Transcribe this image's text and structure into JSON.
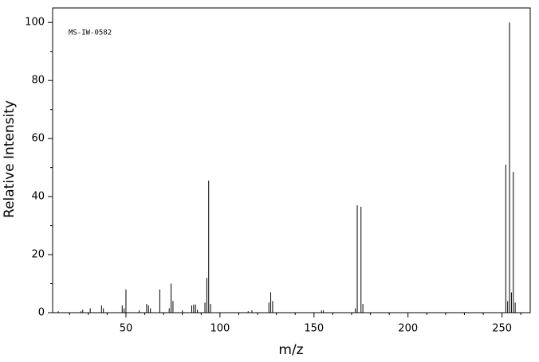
{
  "chart_data": {
    "type": "bar",
    "annotation": "MS-IW-0582",
    "x_label": "m/z",
    "y_label": "Relative Intensity",
    "x": [
      14,
      26,
      27,
      31,
      37,
      38,
      48,
      49,
      50,
      57,
      61,
      62,
      63,
      68,
      73,
      74,
      75,
      80,
      85,
      86,
      87,
      88,
      92,
      93,
      94,
      95,
      115,
      117,
      126,
      127,
      128,
      154,
      155,
      172,
      173,
      175,
      176,
      252,
      253,
      254,
      255,
      256,
      257
    ],
    "values": [
      0.5,
      0.5,
      1,
      1.5,
      2.5,
      1.5,
      2.5,
      1.5,
      8,
      0.8,
      3,
      2.5,
      1.5,
      8,
      1.5,
      10,
      4,
      0.8,
      2.5,
      2.8,
      2.8,
      1,
      3.5,
      12,
      45.5,
      3,
      0.5,
      0.8,
      3.5,
      7,
      4,
      0.8,
      0.8,
      1.5,
      37,
      36.5,
      3,
      51,
      4,
      100,
      7,
      48.5,
      3.5
    ],
    "color": "#000000",
    "xlim": [
      11,
      265
    ],
    "ylim": [
      0,
      105
    ],
    "xticks": [
      50,
      100,
      150,
      200,
      250
    ],
    "xminorticks": [
      20,
      30,
      40,
      60,
      70,
      80,
      90,
      110,
      120,
      130,
      140,
      160,
      170,
      180,
      190,
      210,
      220,
      230,
      240,
      260
    ],
    "yticks": [
      0,
      20,
      40,
      60,
      80,
      100
    ],
    "yminorticks": [
      10,
      30,
      50,
      70,
      90
    ]
  }
}
